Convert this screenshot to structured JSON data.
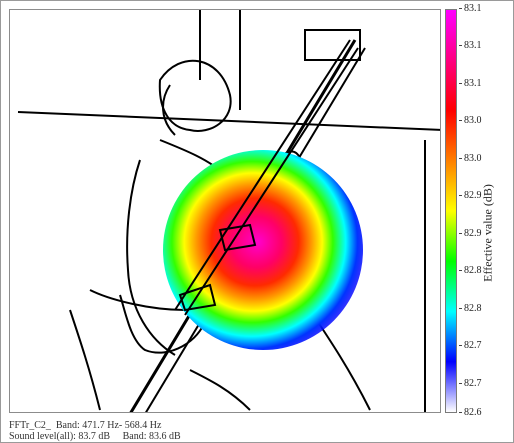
{
  "colorbar": {
    "label": "Effective value (dB)",
    "ticks": [
      "83.1",
      "83.1",
      "83.1",
      "83.0",
      "83.0",
      "82.9",
      "82.9",
      "82.8",
      "82.8",
      "82.7",
      "82.7",
      "82.6"
    ],
    "max_value": 83.1,
    "min_value": 82.6,
    "colors": [
      "#ff00ff",
      "#ff0080",
      "#ff0000",
      "#ff8000",
      "#ffff00",
      "#00ff00",
      "#00ffff",
      "#0000ff",
      "#ffffff"
    ]
  },
  "status": {
    "line1": "FFTr_C2_  Band: 471.7 Hz- 568.4 Hz",
    "line2": "Sound level(all): 83.7 dB     Band: 83.6 dB"
  }
}
